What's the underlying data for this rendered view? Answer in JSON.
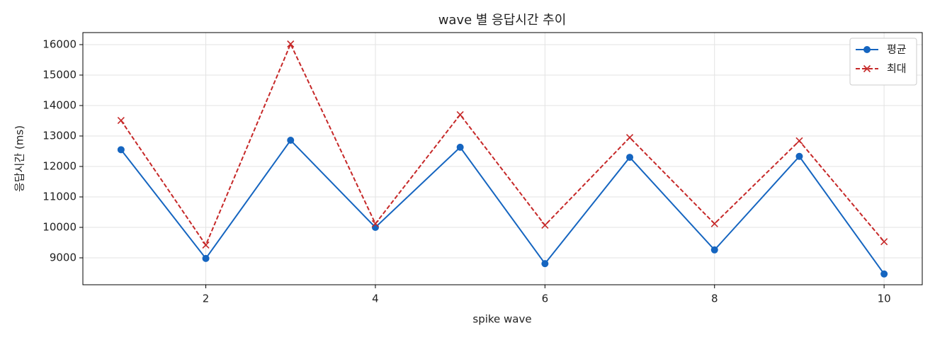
{
  "chart_data": {
    "type": "line",
    "title": "wave 별 응답시간 추이",
    "xlabel": "spike wave",
    "ylabel": "응답시간 (ms)",
    "x": [
      1,
      2,
      3,
      4,
      5,
      6,
      7,
      8,
      9,
      10
    ],
    "series": [
      {
        "name": "평균",
        "color": "#1565c0",
        "marker": "o",
        "linestyle": "solid",
        "values": [
          12550,
          8980,
          12860,
          10000,
          12630,
          8810,
          12300,
          9260,
          12330,
          8470
        ]
      },
      {
        "name": "최대",
        "color": "#c62828",
        "marker": "x",
        "linestyle": "dashed",
        "values": [
          13510,
          9420,
          16020,
          10120,
          13700,
          10070,
          12950,
          10120,
          12840,
          9530
        ]
      }
    ],
    "xlim": [
      0.55,
      10.45
    ],
    "ylim": [
      8116,
      16395
    ],
    "xticks": [
      2,
      4,
      6,
      8,
      10
    ],
    "yticks": [
      9000,
      10000,
      11000,
      12000,
      13000,
      14000,
      15000,
      16000
    ],
    "grid": true,
    "legend": "upper right"
  }
}
